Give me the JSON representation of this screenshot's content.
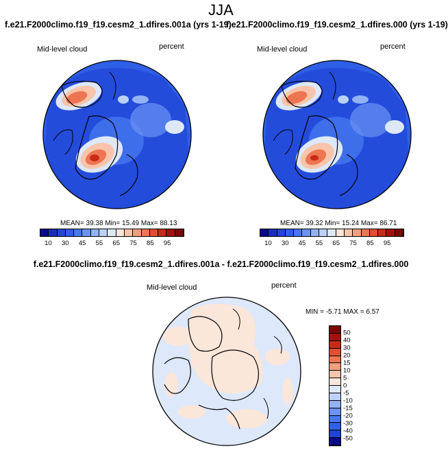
{
  "figure": {
    "title": "JJA",
    "panels": [
      {
        "case_title": "f.e21.F2000climo.f19_f19.cesm2_1.dfires.001a (yrs 1-19)",
        "variable": "Mid-level cloud",
        "units": "percent",
        "stats": "MEAN=  39.38  Min=  15.49  Max=  88.13"
      },
      {
        "case_title": "f.e21.F2000climo.f19_f19.cesm2_1.dfires.000 (yrs 1-19)",
        "variable": "Mid-level cloud",
        "units": "percent",
        "stats": "MEAN=  39.32  Min=  15.24  Max=  86.71"
      }
    ],
    "diff_panel": {
      "case_title": "f.e21.F2000climo.f19_f19.cesm2_1.dfires.001a - f.e21.F2000climo.f19_f19.cesm2_1.dfires.000",
      "variable": "Mid-level cloud",
      "units": "percent",
      "stats": "MIN =  -5.71 MAX =   6.57"
    },
    "colorbar_abs": {
      "labels": [
        "10",
        "30",
        "45",
        "55",
        "65",
        "75",
        "85",
        "95"
      ],
      "colors": [
        "#0a0a8a",
        "#1a2fb8",
        "#1f45d6",
        "#2f5fe6",
        "#4677ee",
        "#6b93f3",
        "#93b3f6",
        "#bcd1f8",
        "#dde8fa",
        "#fbe6da",
        "#f8c4ab",
        "#f49e7d",
        "#ee7552",
        "#e24e30",
        "#c92a17",
        "#a3110c",
        "#7a0806"
      ]
    },
    "colorbar_diff": {
      "labels": [
        "50",
        "40",
        "30",
        "20",
        "15",
        "10",
        "5",
        "0",
        "-5",
        "-10",
        "-15",
        "-20",
        "-30",
        "-40",
        "-50"
      ],
      "colors": [
        "#7a0806",
        "#a3110c",
        "#c92a17",
        "#e24e30",
        "#ee7552",
        "#f49e7d",
        "#f8c4ab",
        "#fbe6da",
        "#dde8fa",
        "#bcd1f8",
        "#93b3f6",
        "#6b93f3",
        "#4677ee",
        "#2f5fe6",
        "#1f45d6",
        "#0a0a8a"
      ]
    }
  }
}
